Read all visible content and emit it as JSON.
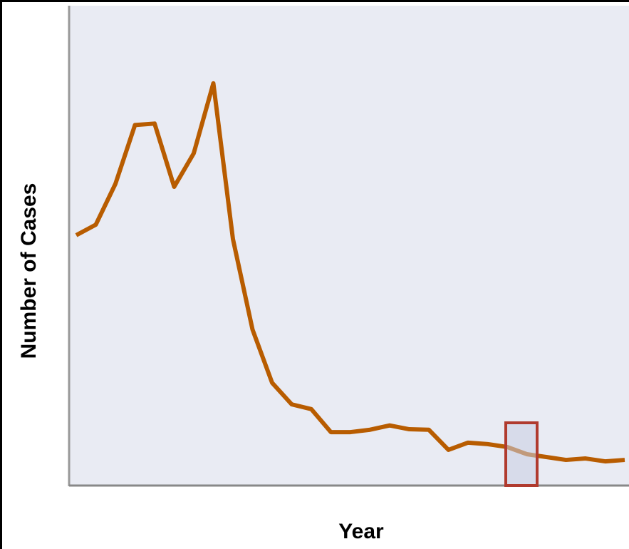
{
  "chart_data": {
    "type": "line",
    "x_label": "Year",
    "y_label": "Number of Cases",
    "categories": [
      null,
      null,
      null,
      null,
      null,
      null,
      null,
      null,
      null,
      null,
      null,
      null,
      null,
      null,
      null,
      null,
      null,
      null,
      null,
      null,
      null,
      null,
      null,
      null,
      null,
      null,
      null,
      null,
      null
    ],
    "series": [
      {
        "color": "#b85c00",
        "values": [
          52.1,
          54.3,
          62.8,
          75.1,
          75.4,
          62.2,
          69.2,
          83.8,
          51.3,
          32.4,
          21.3,
          16.8,
          15.8,
          11.0,
          11.0,
          11.5,
          12.4,
          11.6,
          11.5,
          7.3,
          8.8,
          8.5,
          7.9,
          6.4,
          5.8,
          5.2,
          5.5,
          4.9,
          5.2
        ]
      }
    ],
    "ylim": [
      0,
      100
    ]
  }
}
